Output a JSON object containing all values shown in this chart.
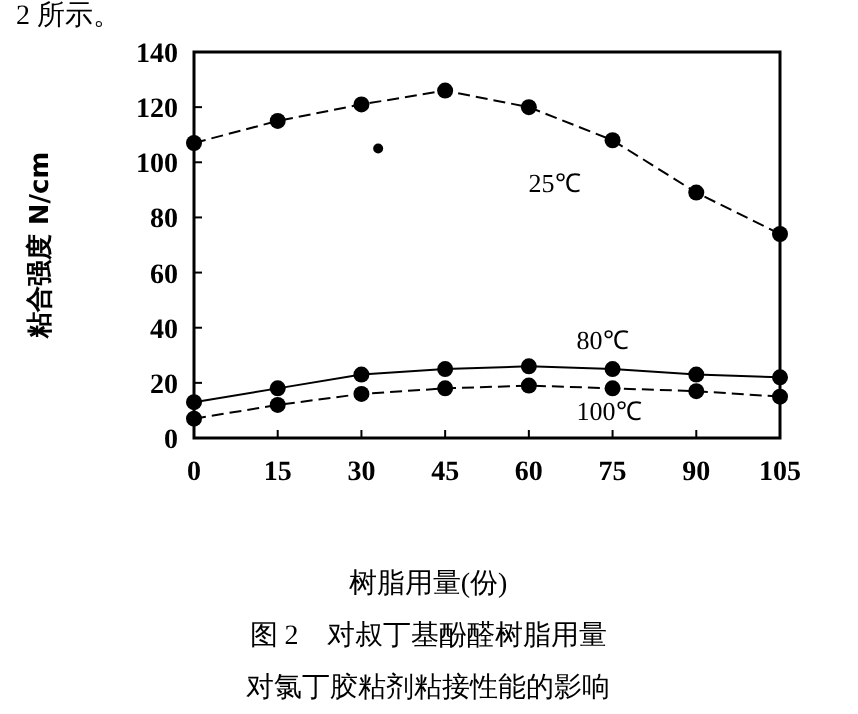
{
  "chart_data": {
    "type": "line",
    "xlabel": "树脂用量(份)",
    "ylabel": "粘合强度 N/cm",
    "annotations": [
      "2 所示。",
      "图 2　对叔丁基酚醛树脂用量",
      "对氯丁胶粘剂粘接性能的影响"
    ],
    "x": [
      0,
      15,
      30,
      45,
      60,
      75,
      90,
      105
    ],
    "xlim": [
      0,
      105
    ],
    "xticks": [
      0,
      15,
      30,
      45,
      60,
      75,
      90,
      105
    ],
    "ylim": [
      0,
      140
    ],
    "yticks": [
      0,
      20,
      40,
      60,
      80,
      100,
      120,
      140
    ],
    "grid": false,
    "marker": "circle",
    "series": [
      {
        "name": "25℃",
        "color": "#000000",
        "line_style": "dashed",
        "values": [
          107,
          115,
          121,
          126,
          120,
          108,
          89,
          74
        ]
      },
      {
        "name": "80℃",
        "color": "#000000",
        "line_style": "solid",
        "values": [
          13,
          18,
          23,
          25,
          26,
          25,
          23,
          22
        ]
      },
      {
        "name": "100℃",
        "color": "#000000",
        "line_style": "dashed",
        "values": [
          7,
          12,
          16,
          18,
          19,
          18,
          17,
          15
        ]
      },
      {
        "type": "scatter",
        "color": "#000000",
        "x": [
          33
        ],
        "values": [
          105
        ]
      }
    ]
  }
}
